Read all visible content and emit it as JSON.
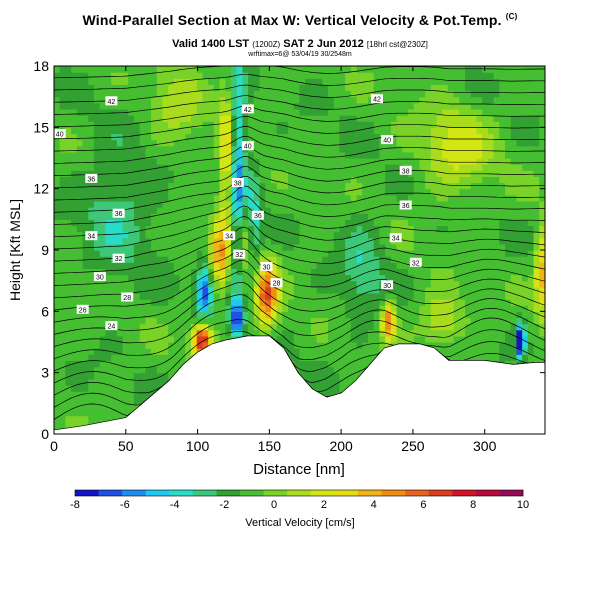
{
  "header": {
    "title": "Wind-Parallel Section at Max W: Vertical Velocity & Pot.Temp.",
    "title_mark": "(C)",
    "valid_line": "Valid 1400 LST",
    "valid_mid": "(1200Z)",
    "valid_date": "SAT 2 Jun 2012",
    "valid_tail": "[18hrl cst@230Z]",
    "info_line": "wrftimax=6@ 53/04/19 30/2548m"
  },
  "chart_data": {
    "type": "heatmap",
    "xlabel": "Distance [nm]",
    "ylabel": "Height [Kft MSL]",
    "xlim": [
      0,
      342
    ],
    "ylim": [
      0,
      18
    ],
    "x_ticks": [
      0,
      50,
      100,
      150,
      200,
      250,
      300
    ],
    "y_ticks": [
      0,
      3,
      6,
      9,
      12,
      15,
      18
    ],
    "grid": false,
    "colorbar": {
      "label": "Vertical Velocity [cm/s]",
      "range": [
        -8,
        10
      ],
      "tick_labels": [
        "-8",
        "-6",
        "-4",
        "-2",
        "0",
        "2",
        "4",
        "6",
        "8",
        "10"
      ],
      "colors": [
        "#1414c8",
        "#1e50e6",
        "#1e8cf0",
        "#1ec8f0",
        "#28dcc8",
        "#3cc878",
        "#32a032",
        "#46be32",
        "#78d228",
        "#aadc1e",
        "#d2e614",
        "#e6dc14",
        "#f0b414",
        "#f08c14",
        "#e6641e",
        "#dc3c1e",
        "#d21428",
        "#b40a3c",
        "#960a5a"
      ]
    },
    "terrain": [
      [
        0,
        0.2
      ],
      [
        20,
        0.4
      ],
      [
        50,
        0.8
      ],
      [
        60,
        1.4
      ],
      [
        70,
        2.0
      ],
      [
        80,
        2.6
      ],
      [
        90,
        3.4
      ],
      [
        100,
        4.0
      ],
      [
        110,
        4.4
      ],
      [
        120,
        4.6
      ],
      [
        135,
        4.8
      ],
      [
        150,
        4.8
      ],
      [
        160,
        4.2
      ],
      [
        170,
        3.0
      ],
      [
        180,
        2.2
      ],
      [
        190,
        1.8
      ],
      [
        200,
        2.0
      ],
      [
        210,
        2.6
      ],
      [
        220,
        3.4
      ],
      [
        230,
        4.2
      ],
      [
        240,
        4.4
      ],
      [
        255,
        4.4
      ],
      [
        265,
        4.2
      ],
      [
        275,
        3.6
      ],
      [
        300,
        3.6
      ],
      [
        320,
        3.4
      ],
      [
        335,
        3.5
      ],
      [
        342,
        3.5
      ]
    ],
    "vertical_velocity_features": [
      {
        "x": 103,
        "z": 4.6,
        "w": 9,
        "rx": 7,
        "rz": 0.8
      },
      {
        "x": 148,
        "z": 6.8,
        "w": 7,
        "rx": 8,
        "rz": 1.6
      },
      {
        "x": 133,
        "z": 9.5,
        "w": 4,
        "rx": 7,
        "rz": 2.5
      },
      {
        "x": 115,
        "z": 8.8,
        "w": 5,
        "rx": 6,
        "rz": 1.8
      },
      {
        "x": 233,
        "z": 5.6,
        "w": 6,
        "rx": 5,
        "rz": 1.0
      },
      {
        "x": 120,
        "z": 13.5,
        "w": 4,
        "rx": 5,
        "rz": 3.5
      },
      {
        "x": 340,
        "z": 8.0,
        "w": 5,
        "rx": 5,
        "rz": 2.0
      },
      {
        "x": 105,
        "z": 7.0,
        "w": -6,
        "rx": 6,
        "rz": 1.2
      },
      {
        "x": 127,
        "z": 5.6,
        "w": -5,
        "rx": 5,
        "rz": 0.8
      },
      {
        "x": 128,
        "z": 12.0,
        "w": -5,
        "rx": 5,
        "rz": 6.0
      },
      {
        "x": 138,
        "z": 10.0,
        "w": -4,
        "rx": 6,
        "rz": 3.0
      },
      {
        "x": 325,
        "z": 4.6,
        "w": -8,
        "rx": 3,
        "rz": 0.8
      },
      {
        "x": 45,
        "z": 11.0,
        "w": -2,
        "rx": 25,
        "rz": 3.0
      },
      {
        "x": 215,
        "z": 8.0,
        "w": -2,
        "rx": 15,
        "rz": 2.5
      },
      {
        "x": 280,
        "z": 14.0,
        "w": 3,
        "rx": 25,
        "rz": 2.0
      },
      {
        "x": 270,
        "z": 5.6,
        "w": 3,
        "rx": 15,
        "rz": 1.2
      },
      {
        "x": 85,
        "z": 16.0,
        "w": 2,
        "rx": 18,
        "rz": 2.0
      }
    ],
    "theta_contour_labels": [
      {
        "text": "42",
        "x": 40,
        "z": 16.3
      },
      {
        "text": "40",
        "x": 4,
        "z": 14.7
      },
      {
        "text": "36",
        "x": 26,
        "z": 12.5
      },
      {
        "text": "36",
        "x": 45,
        "z": 10.8
      },
      {
        "text": "34",
        "x": 26,
        "z": 9.7
      },
      {
        "text": "32",
        "x": 45,
        "z": 8.6
      },
      {
        "text": "30",
        "x": 32,
        "z": 7.7
      },
      {
        "text": "28",
        "x": 51,
        "z": 6.7
      },
      {
        "text": "26",
        "x": 20,
        "z": 6.1
      },
      {
        "text": "24",
        "x": 40,
        "z": 5.3
      },
      {
        "text": "42",
        "x": 135,
        "z": 15.9
      },
      {
        "text": "40",
        "x": 135,
        "z": 14.1
      },
      {
        "text": "38",
        "x": 128,
        "z": 12.3
      },
      {
        "text": "36",
        "x": 142,
        "z": 10.7
      },
      {
        "text": "34",
        "x": 122,
        "z": 9.7
      },
      {
        "text": "32",
        "x": 129,
        "z": 8.8
      },
      {
        "text": "30",
        "x": 148,
        "z": 8.2
      },
      {
        "text": "28",
        "x": 155,
        "z": 7.4
      },
      {
        "text": "42",
        "x": 225,
        "z": 16.4
      },
      {
        "text": "40",
        "x": 232,
        "z": 14.4
      },
      {
        "text": "38",
        "x": 245,
        "z": 12.9
      },
      {
        "text": "36",
        "x": 245,
        "z": 11.2
      },
      {
        "text": "34",
        "x": 238,
        "z": 9.6
      },
      {
        "text": "32",
        "x": 252,
        "z": 8.4
      },
      {
        "text": "30",
        "x": 232,
        "z": 7.3
      }
    ]
  }
}
